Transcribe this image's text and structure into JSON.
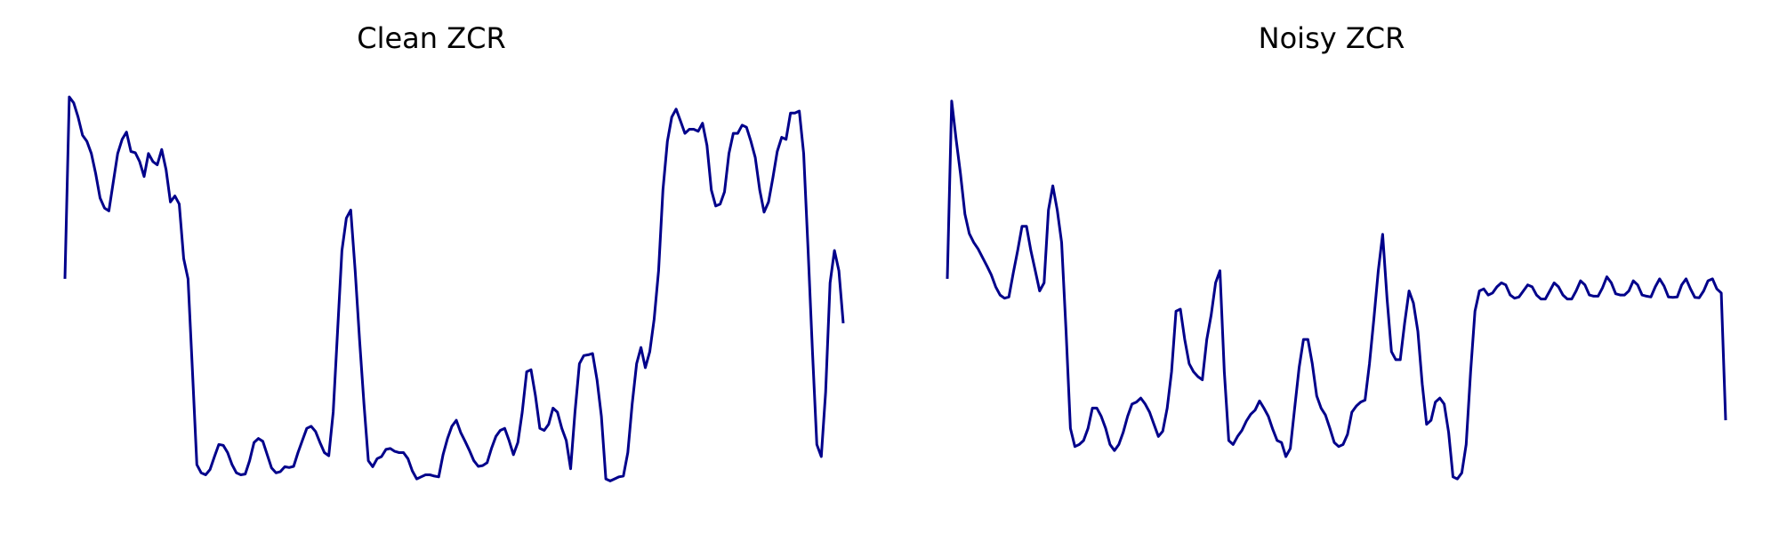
{
  "chart_data": [
    {
      "type": "line",
      "title": "Clean ZCR",
      "axes_visible": false,
      "grid": false,
      "ylim": [
        0,
        1
      ],
      "series": [
        {
          "color": "#00008b",
          "y": [
            0.53,
            0.98,
            0.965,
            0.93,
            0.885,
            0.87,
            0.84,
            0.79,
            0.73,
            0.705,
            0.698,
            0.77,
            0.84,
            0.875,
            0.893,
            0.845,
            0.842,
            0.82,
            0.783,
            0.84,
            0.82,
            0.812,
            0.85,
            0.8,
            0.72,
            0.735,
            0.715,
            0.58,
            0.53,
            0.3,
            0.07,
            0.05,
            0.045,
            0.058,
            0.09,
            0.12,
            0.118,
            0.1,
            0.07,
            0.05,
            0.045,
            0.047,
            0.08,
            0.125,
            0.135,
            0.128,
            0.095,
            0.062,
            0.05,
            0.053,
            0.065,
            0.063,
            0.066,
            0.1,
            0.13,
            0.16,
            0.165,
            0.152,
            0.125,
            0.1,
            0.092,
            0.2,
            0.4,
            0.6,
            0.68,
            0.7,
            0.55,
            0.38,
            0.22,
            0.08,
            0.065,
            0.085,
            0.09,
            0.108,
            0.11,
            0.103,
            0.1,
            0.1,
            0.085,
            0.055,
            0.035,
            0.04,
            0.045,
            0.045,
            0.042,
            0.04,
            0.095,
            0.135,
            0.165,
            0.18,
            0.15,
            0.128,
            0.105,
            0.08,
            0.066,
            0.068,
            0.075,
            0.11,
            0.14,
            0.155,
            0.16,
            0.13,
            0.095,
            0.125,
            0.2,
            0.3,
            0.305,
            0.24,
            0.16,
            0.155,
            0.17,
            0.21,
            0.2,
            0.16,
            0.13,
            0.06,
            0.2,
            0.32,
            0.34,
            0.342,
            0.345,
            0.28,
            0.19,
            0.035,
            0.03,
            0.035,
            0.04,
            0.042,
            0.1,
            0.22,
            0.32,
            0.36,
            0.31,
            0.35,
            0.43,
            0.55,
            0.75,
            0.87,
            0.93,
            0.95,
            0.92,
            0.89,
            0.9,
            0.9,
            0.895,
            0.915,
            0.86,
            0.75,
            0.71,
            0.715,
            0.745,
            0.84,
            0.89,
            0.89,
            0.91,
            0.905,
            0.87,
            0.83,
            0.75,
            0.695,
            0.72,
            0.78,
            0.845,
            0.88,
            0.875,
            0.94,
            0.94,
            0.945,
            0.84,
            0.6,
            0.35,
            0.12,
            0.09,
            0.25,
            0.52,
            0.6,
            0.55,
            0.42
          ]
        }
      ]
    },
    {
      "type": "line",
      "title": "Noisy ZCR",
      "axes_visible": false,
      "grid": false,
      "ylim": [
        0,
        1
      ],
      "series": [
        {
          "color": "#00008b",
          "y": [
            0.53,
            0.97,
            0.875,
            0.79,
            0.69,
            0.642,
            0.62,
            0.604,
            0.583,
            0.562,
            0.54,
            0.51,
            0.49,
            0.482,
            0.485,
            0.545,
            0.6,
            0.66,
            0.66,
            0.6,
            0.55,
            0.5,
            0.52,
            0.7,
            0.76,
            0.7,
            0.62,
            0.4,
            0.16,
            0.115,
            0.12,
            0.13,
            0.16,
            0.21,
            0.21,
            0.19,
            0.16,
            0.12,
            0.105,
            0.12,
            0.15,
            0.19,
            0.22,
            0.225,
            0.235,
            0.22,
            0.2,
            0.17,
            0.14,
            0.153,
            0.21,
            0.3,
            0.45,
            0.455,
            0.38,
            0.32,
            0.3,
            0.288,
            0.28,
            0.38,
            0.44,
            0.52,
            0.55,
            0.3,
            0.13,
            0.12,
            0.14,
            0.155,
            0.178,
            0.195,
            0.205,
            0.228,
            0.21,
            0.19,
            0.158,
            0.13,
            0.125,
            0.09,
            0.11,
            0.21,
            0.31,
            0.38,
            0.38,
            0.32,
            0.24,
            0.21,
            0.193,
            0.16,
            0.125,
            0.115,
            0.12,
            0.145,
            0.2,
            0.215,
            0.225,
            0.23,
            0.32,
            0.43,
            0.55,
            0.64,
            0.48,
            0.35,
            0.33,
            0.33,
            0.42,
            0.5,
            0.47,
            0.4,
            0.27,
            0.17,
            0.18,
            0.225,
            0.235,
            0.22,
            0.15,
            0.04,
            0.035,
            0.05,
            0.12,
            0.3,
            0.45,
            0.5,
            0.505,
            0.49,
            0.495,
            0.51,
            0.52,
            0.515,
            0.49,
            0.482,
            0.485,
            0.5,
            0.515,
            0.51,
            0.49,
            0.48,
            0.48,
            0.5,
            0.52,
            0.51,
            0.49,
            0.48,
            0.48,
            0.5,
            0.525,
            0.515,
            0.49,
            0.487,
            0.487,
            0.508,
            0.535,
            0.52,
            0.493,
            0.49,
            0.49,
            0.5,
            0.525,
            0.515,
            0.49,
            0.487,
            0.485,
            0.51,
            0.53,
            0.512,
            0.485,
            0.484,
            0.485,
            0.515,
            0.53,
            0.505,
            0.484,
            0.483,
            0.5,
            0.525,
            0.53,
            0.505,
            0.495,
            0.18
          ]
        }
      ]
    }
  ]
}
